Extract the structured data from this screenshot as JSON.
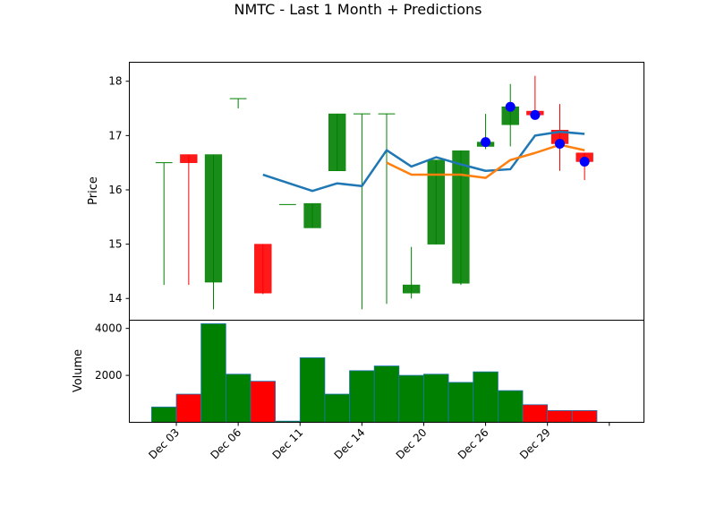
{
  "chart_data": {
    "type": "candlestick",
    "title": "NMTC - Last 1 Month + Predictions",
    "price_ylabel": "Price",
    "volume_ylabel": "Volume",
    "price_ylim": [
      13.6,
      18.35
    ],
    "price_yticks": [
      14,
      15,
      16,
      17,
      18
    ],
    "volume_ylim": [
      0,
      4350
    ],
    "volume_yticks": [
      2000,
      4000
    ],
    "x_tick_labels": [
      "Dec 03",
      "Dec 06",
      "Dec 11",
      "Dec 14",
      "Dec 20",
      "Dec 26",
      "Dec 29",
      ""
    ],
    "x_tick_positions": [
      0.5,
      3,
      5.5,
      8,
      10.5,
      13,
      15.5,
      18
    ],
    "xlim": [
      -1.4,
      19.4
    ],
    "colors": {
      "up": "#008000",
      "down": "#ff0000",
      "ma_short": "#1f77b4",
      "ma_long": "#ff7f0e",
      "prediction": "#0000ff"
    },
    "candles": [
      {
        "o": 16.5,
        "h": 16.5,
        "l": 14.25,
        "c": 16.5,
        "v": 650
      },
      {
        "o": 16.65,
        "h": 16.65,
        "l": 14.25,
        "c": 16.5,
        "v": 1200
      },
      {
        "o": 14.3,
        "h": 16.65,
        "l": 13.8,
        "c": 16.65,
        "v": 4200
      },
      {
        "o": 17.68,
        "h": 17.68,
        "l": 17.5,
        "c": 17.68,
        "v": 2050
      },
      {
        "o": 15.0,
        "h": 15.0,
        "l": 14.08,
        "c": 14.1,
        "v": 1750
      },
      {
        "o": 15.73,
        "h": 15.73,
        "l": 15.73,
        "c": 15.73,
        "v": 50
      },
      {
        "o": 15.3,
        "h": 15.75,
        "l": 15.3,
        "c": 15.75,
        "v": 2750
      },
      {
        "o": 16.35,
        "h": 17.4,
        "l": 16.35,
        "c": 17.4,
        "v": 1200
      },
      {
        "o": 17.4,
        "h": 17.4,
        "l": 13.8,
        "c": 17.4,
        "v": 2200
      },
      {
        "o": 17.4,
        "h": 17.4,
        "l": 13.9,
        "c": 17.4,
        "v": 2400
      },
      {
        "o": 14.1,
        "h": 14.95,
        "l": 14.0,
        "c": 14.25,
        "v": 2000
      },
      {
        "o": 15.0,
        "h": 16.55,
        "l": 15.0,
        "c": 16.55,
        "v": 2050
      },
      {
        "o": 14.28,
        "h": 16.72,
        "l": 14.25,
        "c": 16.72,
        "v": 1700
      },
      {
        "o": 16.8,
        "h": 17.4,
        "l": 16.75,
        "c": 16.88,
        "v": 2150
      },
      {
        "o": 17.2,
        "h": 17.95,
        "l": 16.8,
        "c": 17.53,
        "v": 1350
      },
      {
        "o": 17.45,
        "h": 18.1,
        "l": 17.3,
        "c": 17.38,
        "v": 750
      },
      {
        "o": 17.1,
        "h": 17.58,
        "l": 16.35,
        "c": 16.85,
        "v": 500
      },
      {
        "o": 16.68,
        "h": 16.68,
        "l": 16.18,
        "c": 16.52,
        "v": 500
      }
    ],
    "ma_short": [
      {
        "x": 4,
        "y": 16.28
      },
      {
        "x": 6,
        "y": 15.98
      },
      {
        "x": 7,
        "y": 16.12
      },
      {
        "x": 8,
        "y": 16.07
      },
      {
        "x": 9,
        "y": 16.73
      },
      {
        "x": 10,
        "y": 16.43
      },
      {
        "x": 11,
        "y": 16.6
      },
      {
        "x": 12,
        "y": 16.47
      },
      {
        "x": 13,
        "y": 16.35
      },
      {
        "x": 14,
        "y": 16.38
      },
      {
        "x": 15,
        "y": 17.0
      },
      {
        "x": 16,
        "y": 17.07
      },
      {
        "x": 17,
        "y": 17.03
      }
    ],
    "ma_long": [
      {
        "x": 9,
        "y": 16.5
      },
      {
        "x": 10,
        "y": 16.28
      },
      {
        "x": 11,
        "y": 16.28
      },
      {
        "x": 12,
        "y": 16.28
      },
      {
        "x": 13,
        "y": 16.22
      },
      {
        "x": 14,
        "y": 16.55
      },
      {
        "x": 15,
        "y": 16.68
      },
      {
        "x": 16,
        "y": 16.83
      },
      {
        "x": 17,
        "y": 16.73
      }
    ],
    "predictions": [
      {
        "x": 13,
        "y": 16.88
      },
      {
        "x": 14,
        "y": 17.53
      },
      {
        "x": 15,
        "y": 17.38
      },
      {
        "x": 16,
        "y": 16.85
      },
      {
        "x": 17,
        "y": 16.52
      }
    ]
  }
}
